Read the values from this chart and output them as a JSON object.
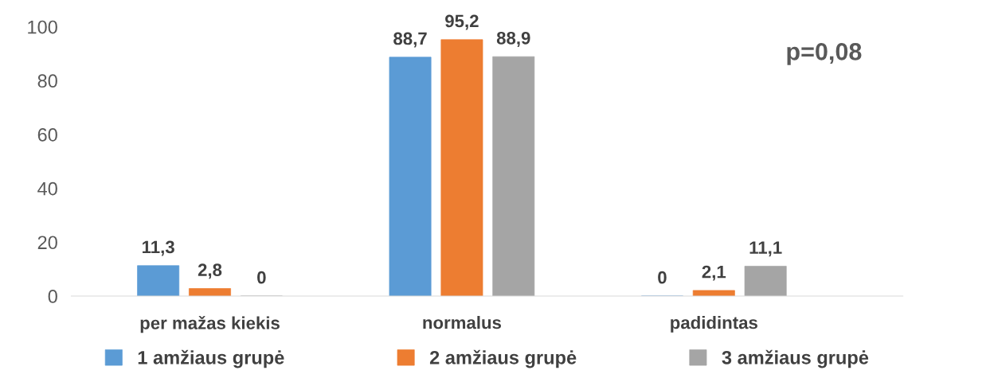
{
  "chart_data": {
    "type": "bar",
    "categories": [
      "per mažas kiekis",
      "normalus",
      "padidintas"
    ],
    "series": [
      {
        "name": "1 amžiaus grupė",
        "color": "#5b9bd5",
        "values": [
          11.3,
          88.7,
          0
        ],
        "value_labels": [
          "11,3",
          "88,7",
          "0"
        ]
      },
      {
        "name": "2 amžiaus grupė",
        "color": "#ed7d31",
        "values": [
          2.8,
          95.2,
          2.1
        ],
        "value_labels": [
          "2,8",
          "95,2",
          "2,1"
        ]
      },
      {
        "name": "3 amžiaus grupė",
        "color": "#a5a5a5",
        "values": [
          0,
          88.9,
          11.1
        ],
        "value_labels": [
          "0",
          "88,9",
          "11,1"
        ]
      }
    ],
    "ylim": [
      0,
      100
    ],
    "yticks": [
      0,
      20,
      40,
      60,
      80,
      100
    ],
    "grid": false,
    "legend": "bottom",
    "annotations": [
      "p=0,08"
    ]
  }
}
